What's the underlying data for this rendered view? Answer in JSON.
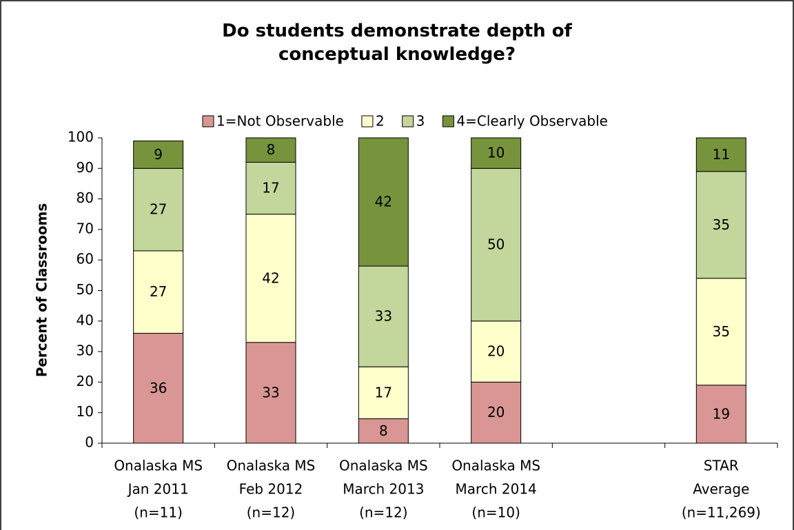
{
  "chart_data": {
    "type": "stacked-bar",
    "title": "Do students demonstrate depth of conceptual knowledge?",
    "y_label": "Percent of Classrooms",
    "categories": [
      [
        "Onalaska MS",
        "Jan 2011",
        "(n=11)"
      ],
      [
        "Onalaska MS",
        "Feb 2012",
        "(n=12)"
      ],
      [
        "Onalaska MS",
        "March 2013",
        "(n=12)"
      ],
      [
        "Onalaska MS",
        "March 2014",
        "(n=10)"
      ],
      null,
      [
        "STAR",
        "Average",
        "(n=11,269)"
      ]
    ],
    "series": [
      {
        "name": "1=Not Observable",
        "color": "#d99694",
        "values": [
          36,
          33,
          8,
          20,
          null,
          19
        ]
      },
      {
        "name": "2",
        "color": "#ffffcc",
        "values": [
          27,
          42,
          17,
          20,
          null,
          35
        ]
      },
      {
        "name": "3",
        "color": "#c3d69b",
        "values": [
          27,
          17,
          33,
          50,
          null,
          35
        ]
      },
      {
        "name": "4=Clearly Observable",
        "color": "#77933c",
        "values": [
          9,
          8,
          42,
          10,
          null,
          11
        ]
      }
    ],
    "ylim": [
      0,
      100
    ],
    "yticks": [
      0,
      10,
      20,
      30,
      40,
      50,
      60,
      70,
      80,
      90,
      100
    ],
    "legend": "top"
  }
}
